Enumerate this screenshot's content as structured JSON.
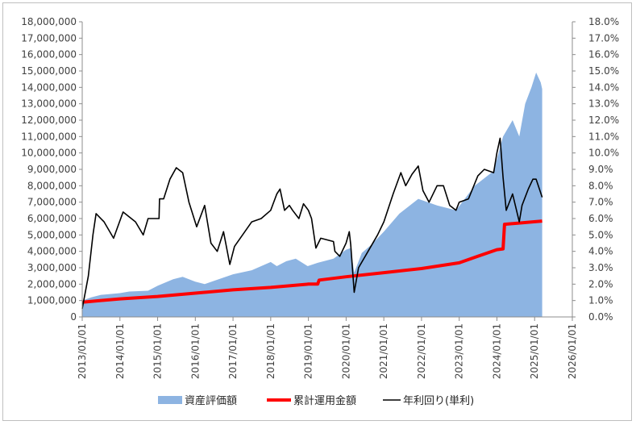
{
  "chart_data": {
    "type": "area",
    "title": "",
    "xlabel": "",
    "ylabel": "",
    "ylim": [
      0,
      18000000
    ],
    "y2lim": [
      0,
      0.18
    ],
    "y_ticks": [
      "0",
      "1,000,000",
      "2,000,000",
      "3,000,000",
      "4,000,000",
      "5,000,000",
      "6,000,000",
      "7,000,000",
      "8,000,000",
      "9,000,000",
      "10,000,000",
      "11,000,000",
      "12,000,000",
      "13,000,000",
      "14,000,000",
      "15,000,000",
      "16,000,000",
      "17,000,000",
      "18,000,000"
    ],
    "y2_ticks": [
      "0.0%",
      "1.0%",
      "2.0%",
      "3.0%",
      "4.0%",
      "5.0%",
      "6.0%",
      "7.0%",
      "8.0%",
      "9.0%",
      "10.0%",
      "11.0%",
      "12.0%",
      "13.0%",
      "14.0%",
      "15.0%",
      "16.0%",
      "17.0%",
      "18.0%"
    ],
    "x_ticks": [
      "2013/01/01",
      "2014/01/01",
      "2015/01/01",
      "2016/01/01",
      "2017/01/01",
      "2018/01/01",
      "2019/01/01",
      "2020/01/01",
      "2021/01/01",
      "2022/01/01",
      "2023/01/01",
      "2024/01/01",
      "2025/01/01",
      "2026/01/01"
    ],
    "xlim": [
      "2013-01-01",
      "2026-01-01"
    ],
    "legend_position": "bottom",
    "grid": false,
    "series": [
      {
        "name": "資産評価額",
        "kind": "area",
        "axis": "left",
        "color": "#8db4e2",
        "points": [
          [
            "2013-01-01",
            1000000
          ],
          [
            "2013-04-01",
            1200000
          ],
          [
            "2013-07-01",
            1350000
          ],
          [
            "2014-01-01",
            1450000
          ],
          [
            "2014-04-01",
            1550000
          ],
          [
            "2014-10-01",
            1600000
          ],
          [
            "2015-01-01",
            1900000
          ],
          [
            "2015-06-01",
            2300000
          ],
          [
            "2015-09-01",
            2450000
          ],
          [
            "2016-01-01",
            2150000
          ],
          [
            "2016-04-01",
            2000000
          ],
          [
            "2016-07-01",
            2200000
          ],
          [
            "2017-01-01",
            2600000
          ],
          [
            "2017-07-01",
            2850000
          ],
          [
            "2018-01-01",
            3350000
          ],
          [
            "2018-03-01",
            3100000
          ],
          [
            "2018-06-01",
            3400000
          ],
          [
            "2018-09-01",
            3550000
          ],
          [
            "2018-12-25",
            3100000
          ],
          [
            "2019-04-01",
            3300000
          ],
          [
            "2019-09-01",
            3550000
          ],
          [
            "2020-01-01",
            4100000
          ],
          [
            "2020-02-15",
            4200000
          ],
          [
            "2020-03-20",
            2700000
          ],
          [
            "2020-06-01",
            3900000
          ],
          [
            "2020-09-01",
            4400000
          ],
          [
            "2021-01-01",
            5200000
          ],
          [
            "2021-06-01",
            6300000
          ],
          [
            "2021-12-01",
            7200000
          ],
          [
            "2022-06-01",
            6800000
          ],
          [
            "2022-12-01",
            6500000
          ],
          [
            "2023-06-01",
            8000000
          ],
          [
            "2023-12-01",
            8900000
          ],
          [
            "2024-03-01",
            11000000
          ],
          [
            "2024-06-01",
            12000000
          ],
          [
            "2024-08-05",
            11000000
          ],
          [
            "2024-10-01",
            13000000
          ],
          [
            "2024-12-01",
            14000000
          ],
          [
            "2025-01-15",
            14900000
          ],
          [
            "2025-03-01",
            14300000
          ],
          [
            "2025-03-15",
            13900000
          ]
        ]
      },
      {
        "name": "累計運用金額",
        "kind": "line",
        "axis": "left",
        "color": "#ff0000",
        "points": [
          [
            "2013-01-01",
            900000
          ],
          [
            "2014-01-01",
            1100000
          ],
          [
            "2015-01-01",
            1250000
          ],
          [
            "2016-01-01",
            1450000
          ],
          [
            "2017-01-01",
            1650000
          ],
          [
            "2018-01-01",
            1800000
          ],
          [
            "2019-01-01",
            2000000
          ],
          [
            "2019-04-01",
            2000000
          ],
          [
            "2019-04-15",
            2250000
          ],
          [
            "2020-01-01",
            2450000
          ],
          [
            "2021-01-01",
            2700000
          ],
          [
            "2022-01-01",
            2950000
          ],
          [
            "2023-01-01",
            3300000
          ],
          [
            "2023-07-01",
            3700000
          ],
          [
            "2024-01-01",
            4100000
          ],
          [
            "2024-03-01",
            4150000
          ],
          [
            "2024-03-15",
            5650000
          ],
          [
            "2025-03-15",
            5850000
          ]
        ]
      },
      {
        "name": "年利回り(単利)",
        "kind": "line",
        "axis": "right",
        "color": "#000000",
        "points": [
          [
            "2013-01-01",
            0.005
          ],
          [
            "2013-03-01",
            0.025
          ],
          [
            "2013-04-15",
            0.05
          ],
          [
            "2013-05-15",
            0.063
          ],
          [
            "2013-08-01",
            0.058
          ],
          [
            "2013-11-01",
            0.048
          ],
          [
            "2014-02-01",
            0.064
          ],
          [
            "2014-06-01",
            0.058
          ],
          [
            "2014-08-15",
            0.05
          ],
          [
            "2014-10-01",
            0.06
          ],
          [
            "2015-01-15",
            0.06
          ],
          [
            "2015-01-20",
            0.072
          ],
          [
            "2015-03-01",
            0.072
          ],
          [
            "2015-05-01",
            0.084
          ],
          [
            "2015-07-01",
            0.091
          ],
          [
            "2015-09-01",
            0.088
          ],
          [
            "2015-11-01",
            0.07
          ],
          [
            "2016-01-15",
            0.055
          ],
          [
            "2016-04-01",
            0.068
          ],
          [
            "2016-06-01",
            0.045
          ],
          [
            "2016-08-01",
            0.04
          ],
          [
            "2016-10-01",
            0.052
          ],
          [
            "2016-12-01",
            0.032
          ],
          [
            "2017-01-15",
            0.043
          ],
          [
            "2017-07-01",
            0.058
          ],
          [
            "2017-10-01",
            0.06
          ],
          [
            "2018-01-01",
            0.065
          ],
          [
            "2018-03-01",
            0.075
          ],
          [
            "2018-04-01",
            0.078
          ],
          [
            "2018-05-15",
            0.065
          ],
          [
            "2018-07-01",
            0.068
          ],
          [
            "2018-08-01",
            0.065
          ],
          [
            "2018-10-01",
            0.06
          ],
          [
            "2018-11-15",
            0.069
          ],
          [
            "2019-01-01",
            0.065
          ],
          [
            "2019-02-01",
            0.06
          ],
          [
            "2019-03-15",
            0.042
          ],
          [
            "2019-05-01",
            0.048
          ],
          [
            "2019-09-01",
            0.046
          ],
          [
            "2019-09-15",
            0.04
          ],
          [
            "2019-11-01",
            0.037
          ],
          [
            "2020-01-01",
            0.045
          ],
          [
            "2020-02-01",
            0.052
          ],
          [
            "2020-02-15",
            0.044
          ],
          [
            "2020-03-20",
            0.015
          ],
          [
            "2020-05-01",
            0.03
          ],
          [
            "2020-08-01",
            0.04
          ],
          [
            "2020-11-01",
            0.05
          ],
          [
            "2021-01-01",
            0.058
          ],
          [
            "2021-04-01",
            0.075
          ],
          [
            "2021-06-15",
            0.088
          ],
          [
            "2021-08-01",
            0.08
          ],
          [
            "2021-10-01",
            0.087
          ],
          [
            "2021-12-01",
            0.092
          ],
          [
            "2022-01-15",
            0.077
          ],
          [
            "2022-03-15",
            0.07
          ],
          [
            "2022-06-01",
            0.08
          ],
          [
            "2022-08-01",
            0.08
          ],
          [
            "2022-10-01",
            0.068
          ],
          [
            "2022-12-01",
            0.065
          ],
          [
            "2023-01-01",
            0.07
          ],
          [
            "2023-04-01",
            0.072
          ],
          [
            "2023-07-01",
            0.086
          ],
          [
            "2023-09-01",
            0.09
          ],
          [
            "2023-12-01",
            0.088
          ],
          [
            "2024-01-01",
            0.1
          ],
          [
            "2024-02-01",
            0.109
          ],
          [
            "2024-03-01",
            0.085
          ],
          [
            "2024-04-01",
            0.065
          ],
          [
            "2024-06-01",
            0.075
          ],
          [
            "2024-08-05",
            0.058
          ],
          [
            "2024-09-01",
            0.068
          ],
          [
            "2024-11-01",
            0.078
          ],
          [
            "2024-12-15",
            0.084
          ],
          [
            "2025-01-15",
            0.084
          ],
          [
            "2025-03-15",
            0.073
          ]
        ]
      }
    ]
  }
}
